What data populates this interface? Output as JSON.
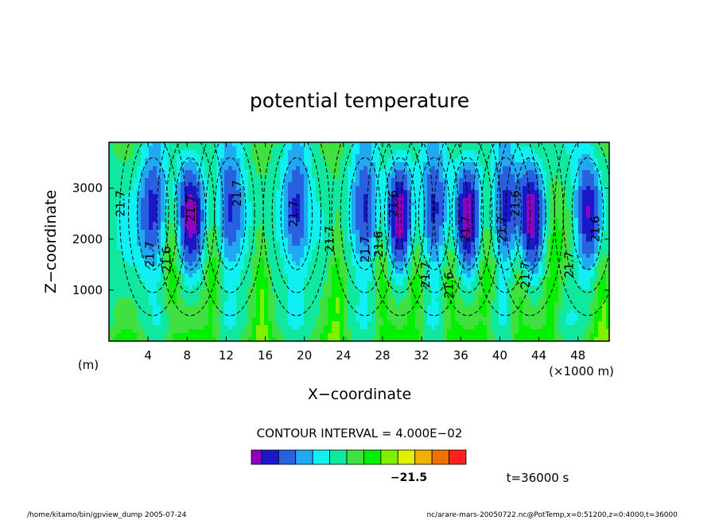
{
  "chart_data": {
    "type": "heatmap",
    "title": "potential temperature",
    "xlabel": "X−coordinate",
    "ylabel": "Z−coordinate",
    "x_unit": "(m)",
    "x_scale_label": "(×1000 m)",
    "xlim": [
      0,
      51.2
    ],
    "ylim": [
      0,
      3900
    ],
    "x_ticks": [
      4,
      8,
      12,
      16,
      20,
      24,
      28,
      32,
      36,
      40,
      44,
      48
    ],
    "y_ticks": [
      1000,
      2000,
      3000
    ],
    "contour_interval_text": "CONTOUR INTERVAL = 4.000E−02",
    "colorbar_label": "−21.5",
    "contour_labels": [
      {
        "text": "21.7",
        "x": 1.6,
        "y": 2700
      },
      {
        "text": "21.7",
        "x": 4.6,
        "y": 1700
      },
      {
        "text": "21.6",
        "x": 6.3,
        "y": 1600
      },
      {
        "text": "21.7",
        "x": 8.8,
        "y": 2600
      },
      {
        "text": "21.7",
        "x": 13.5,
        "y": 2900
      },
      {
        "text": "21.7",
        "x": 19.3,
        "y": 2500
      },
      {
        "text": "21.7",
        "x": 23.0,
        "y": 2000
      },
      {
        "text": "21.7",
        "x": 26.6,
        "y": 1800
      },
      {
        "text": "21.6",
        "x": 28.0,
        "y": 1900
      },
      {
        "text": "21.6",
        "x": 29.5,
        "y": 2700
      },
      {
        "text": "21.7",
        "x": 32.8,
        "y": 1300
      },
      {
        "text": "21.6",
        "x": 35.2,
        "y": 1100
      },
      {
        "text": "21.7",
        "x": 36.9,
        "y": 2200
      },
      {
        "text": "21.7",
        "x": 40.6,
        "y": 2200
      },
      {
        "text": "21.6",
        "x": 42.0,
        "y": 2700
      },
      {
        "text": "21.7",
        "x": 43.0,
        "y": 1300
      },
      {
        "text": "21.7",
        "x": 47.5,
        "y": 1500
      },
      {
        "text": "21.6",
        "x": 50.2,
        "y": 2200
      }
    ],
    "colormap": [
      "#9000c0",
      "#1818c8",
      "#2860e0",
      "#20a8f0",
      "#10f0f0",
      "#10e8a0",
      "#40e040",
      "#00f000",
      "#80f000",
      "#e0f000",
      "#f0b000",
      "#f07000",
      "#ff2020"
    ]
  },
  "annotations": {
    "time": "t=36000 s",
    "footer_left": "/home/kitamo/bin/gpview_dump  2005-07-24",
    "footer_right": "nc/arare-mars-20050722.nc@PotTemp,x=0:51200,z=0:4000,t=36000"
  }
}
